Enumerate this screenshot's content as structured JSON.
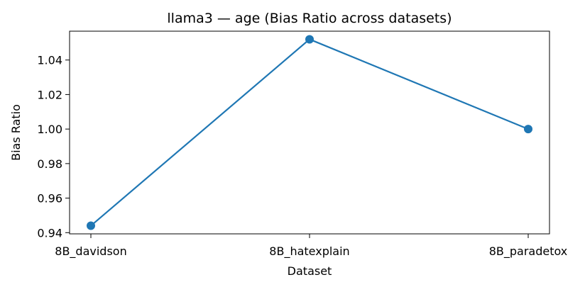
{
  "chart_data": {
    "type": "line",
    "title": "llama3 — age (Bias Ratio across datasets)",
    "xlabel": "Dataset",
    "ylabel": "Bias Ratio",
    "categories": [
      "8B_davidson",
      "8B_hatexplain",
      "8B_paradetox"
    ],
    "series": [
      {
        "values": [
          0.944,
          1.052,
          1.0
        ],
        "color": "#1f77b4"
      }
    ],
    "ylim": [
      0.9393,
      1.0567
    ],
    "yticks": [
      0.94,
      0.96,
      0.98,
      1.0,
      1.02,
      1.04
    ],
    "ytick_labels": [
      "0.94",
      "0.96",
      "0.98",
      "1.00",
      "1.02",
      "1.04"
    ],
    "grid": false,
    "legend": "none"
  }
}
